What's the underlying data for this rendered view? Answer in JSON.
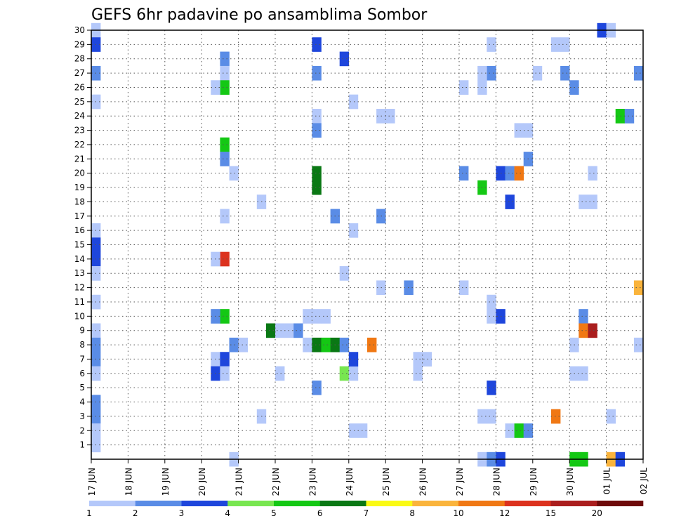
{
  "chart_data": {
    "type": "heatmap",
    "title": "GEFS 6hr padavine po ansamblima Sombor",
    "xlabel": "",
    "ylabel": "",
    "x_tick_labels": [
      "17 JUN",
      "18 JUN",
      "19 JUN",
      "20 JUN",
      "21 JUN",
      "22 JUN",
      "23 JUN",
      "24 JUN",
      "25 JUN",
      "26 JUN",
      "27 JUN",
      "28 JUN",
      "29 JUN",
      "30 JUN",
      "01 JUL",
      "02 JUL"
    ],
    "y_tick_labels": [
      "1",
      "2",
      "3",
      "4",
      "5",
      "6",
      "7",
      "8",
      "9",
      "10",
      "11",
      "12",
      "13",
      "14",
      "15",
      "16",
      "17",
      "18",
      "19",
      "20",
      "21",
      "22",
      "23",
      "24",
      "25",
      "26",
      "27",
      "28",
      "29",
      "30"
    ],
    "x_unit": "6-hour step (4 per day)",
    "ylim": [
      0,
      30
    ],
    "grid": true,
    "colorbar": {
      "levels": [
        "1",
        "2",
        "3",
        "4",
        "5",
        "6",
        "7",
        "8",
        "10",
        "12",
        "15",
        "20"
      ],
      "colors": [
        "#b4c8fa",
        "#5a8ce6",
        "#1e46dc",
        "#78e650",
        "#14c814",
        "#0a7814",
        "#fafa14",
        "#fab43c",
        "#f07814",
        "#dc321e",
        "#aa1e1e",
        "#6e0a0a"
      ]
    },
    "cells": [
      [
        0,
        30,
        1
      ],
      [
        0,
        29,
        3
      ],
      [
        0,
        27,
        2
      ],
      [
        0,
        25,
        1
      ],
      [
        0,
        16,
        1
      ],
      [
        0,
        15,
        3
      ],
      [
        0,
        14,
        3
      ],
      [
        0,
        13,
        1
      ],
      [
        0,
        11,
        1
      ],
      [
        0,
        9,
        1
      ],
      [
        0,
        8,
        2
      ],
      [
        0,
        7,
        2
      ],
      [
        0,
        6,
        1
      ],
      [
        0,
        4,
        2
      ],
      [
        0,
        3,
        2
      ],
      [
        0,
        2,
        1
      ],
      [
        0,
        1,
        1
      ],
      [
        14,
        28,
        2
      ],
      [
        14,
        27,
        1
      ],
      [
        14,
        26,
        5
      ],
      [
        13,
        26,
        1
      ],
      [
        14,
        22,
        5
      ],
      [
        14,
        21,
        2
      ],
      [
        15,
        20,
        1
      ],
      [
        14,
        17,
        1
      ],
      [
        14,
        14,
        12
      ],
      [
        13,
        14,
        1
      ],
      [
        14,
        10,
        5
      ],
      [
        13,
        10,
        2
      ],
      [
        13,
        7,
        1
      ],
      [
        14,
        7,
        3
      ],
      [
        13,
        6,
        3
      ],
      [
        14,
        6,
        1
      ],
      [
        15,
        8,
        2
      ],
      [
        16,
        8,
        1
      ],
      [
        15,
        0,
        1
      ],
      [
        18,
        18,
        1
      ],
      [
        19,
        9,
        6
      ],
      [
        20,
        9,
        1
      ],
      [
        21,
        9,
        1
      ],
      [
        22,
        9,
        2
      ],
      [
        18,
        3,
        1
      ],
      [
        20,
        6,
        1
      ],
      [
        24,
        29,
        3
      ],
      [
        24,
        27,
        2
      ],
      [
        24,
        24,
        1
      ],
      [
        24,
        23,
        2
      ],
      [
        24,
        20,
        6
      ],
      [
        24,
        19,
        6
      ],
      [
        24,
        5,
        2
      ],
      [
        23,
        10,
        1
      ],
      [
        24,
        10,
        1
      ],
      [
        25,
        10,
        1
      ],
      [
        23,
        8,
        1
      ],
      [
        24,
        8,
        6
      ],
      [
        25,
        8,
        5
      ],
      [
        26,
        8,
        6
      ],
      [
        27,
        8,
        2
      ],
      [
        26,
        17,
        2
      ],
      [
        27,
        28,
        3
      ],
      [
        28,
        25,
        1
      ],
      [
        28,
        16,
        1
      ],
      [
        27,
        13,
        1
      ],
      [
        27,
        6,
        4
      ],
      [
        28,
        6,
        1
      ],
      [
        28,
        7,
        3
      ],
      [
        28,
        2,
        1
      ],
      [
        29,
        2,
        1
      ],
      [
        31,
        17,
        2
      ],
      [
        31,
        12,
        1
      ],
      [
        31,
        24,
        1
      ],
      [
        32,
        24,
        1
      ],
      [
        30,
        8,
        10
      ],
      [
        34,
        12,
        2
      ],
      [
        35,
        7,
        1
      ],
      [
        35,
        6,
        1
      ],
      [
        36,
        7,
        1
      ],
      [
        40,
        26,
        1
      ],
      [
        40,
        12,
        1
      ],
      [
        40,
        20,
        2
      ],
      [
        43,
        29,
        1
      ],
      [
        43,
        27,
        2
      ],
      [
        42,
        27,
        1
      ],
      [
        42,
        26,
        1
      ],
      [
        43,
        11,
        1
      ],
      [
        43,
        10,
        1
      ],
      [
        44,
        10,
        3
      ],
      [
        42,
        19,
        5
      ],
      [
        44,
        20,
        3
      ],
      [
        45,
        20,
        2
      ],
      [
        46,
        20,
        10
      ],
      [
        47,
        21,
        2
      ],
      [
        45,
        18,
        3
      ],
      [
        43,
        5,
        3
      ],
      [
        42,
        3,
        1
      ],
      [
        43,
        3,
        1
      ],
      [
        45,
        2,
        1
      ],
      [
        46,
        2,
        5
      ],
      [
        47,
        2,
        2
      ],
      [
        42,
        0,
        1
      ],
      [
        43,
        0,
        2
      ],
      [
        44,
        0,
        3
      ],
      [
        46,
        23,
        1
      ],
      [
        47,
        23,
        1
      ],
      [
        48,
        27,
        1
      ],
      [
        50,
        29,
        1
      ],
      [
        51,
        29,
        1
      ],
      [
        51,
        27,
        2
      ],
      [
        52,
        26,
        2
      ],
      [
        50,
        3,
        10
      ],
      [
        52,
        6,
        1
      ],
      [
        53,
        6,
        1
      ],
      [
        52,
        8,
        1
      ],
      [
        53,
        10,
        2
      ],
      [
        53,
        9,
        10
      ],
      [
        54,
        9,
        15
      ],
      [
        53,
        18,
        1
      ],
      [
        54,
        18,
        1
      ],
      [
        54,
        20,
        1
      ],
      [
        55,
        30,
        3
      ],
      [
        56,
        30,
        1
      ],
      [
        52,
        0,
        5
      ],
      [
        53,
        0,
        5
      ],
      [
        56,
        0,
        8
      ],
      [
        57,
        0,
        3
      ],
      [
        56,
        3,
        1
      ],
      [
        57,
        24,
        5
      ],
      [
        58,
        24,
        2
      ],
      [
        59,
        27,
        2
      ],
      [
        59,
        12,
        8
      ],
      [
        59,
        8,
        1
      ]
    ]
  }
}
